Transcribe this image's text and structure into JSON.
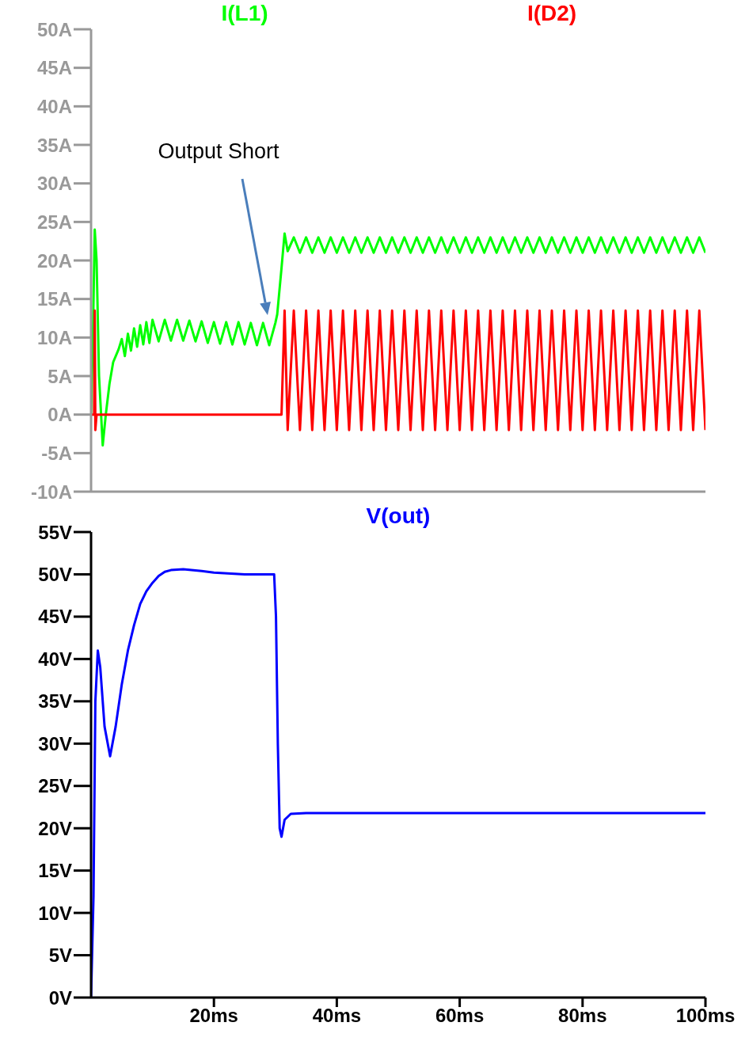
{
  "chart_data": [
    {
      "type": "line",
      "legend": "top",
      "marker": "none",
      "tick_labels": "y",
      "xlim": [
        0,
        100
      ],
      "ylim": [
        -10,
        50
      ],
      "yticks": [
        {
          "value": -10,
          "label": "-10A"
        },
        {
          "value": -5,
          "label": "-5A"
        },
        {
          "value": 0,
          "label": "0A"
        },
        {
          "value": 5,
          "label": "5A"
        },
        {
          "value": 10,
          "label": "10A"
        },
        {
          "value": 15,
          "label": "15A"
        },
        {
          "value": 20,
          "label": "20A"
        },
        {
          "value": 25,
          "label": "25A"
        },
        {
          "value": 30,
          "label": "30A"
        },
        {
          "value": 35,
          "label": "35A"
        },
        {
          "value": 40,
          "label": "40A"
        },
        {
          "value": 45,
          "label": "45A"
        },
        {
          "value": 50,
          "label": "50A"
        }
      ],
      "annotations": [
        "Output Short"
      ],
      "series": [
        {
          "name": "I(L1)",
          "color": "#00ff00",
          "x": [
            0,
            0.3,
            0.6,
            0.9,
            1.3,
            1.9,
            2.4,
            3.0,
            3.6,
            4.5,
            5,
            5.5,
            6,
            6.5,
            7,
            7.5,
            8,
            8.5,
            9,
            9.5,
            10,
            11,
            12,
            13,
            14,
            15,
            16,
            17,
            18,
            19,
            20,
            21,
            22,
            23,
            24,
            25,
            26,
            27,
            28,
            29,
            30,
            30.3,
            31,
            31.5,
            32,
            33,
            34,
            35,
            36,
            37,
            38,
            39,
            40,
            41,
            42,
            43,
            44,
            45,
            46,
            47,
            48,
            49,
            50,
            51,
            52,
            53,
            54,
            55,
            56,
            57,
            58,
            59,
            60,
            61,
            62,
            63,
            64,
            65,
            66,
            67,
            68,
            69,
            70,
            71,
            72,
            73,
            74,
            75,
            76,
            77,
            78,
            79,
            80,
            81,
            82,
            83,
            84,
            85,
            86,
            87,
            88,
            89,
            90,
            91,
            92,
            93,
            94,
            95,
            96,
            97,
            98,
            99,
            100
          ],
          "values": [
            0,
            10,
            24,
            20,
            5,
            -4,
            0,
            4,
            6.8,
            8.5,
            9.8,
            7.6,
            10.5,
            8.3,
            11.2,
            8.8,
            11.6,
            9.1,
            12,
            9.3,
            12.3,
            9.5,
            12.3,
            9.6,
            12.3,
            9.6,
            12.2,
            9.5,
            12.1,
            9.3,
            12,
            9.2,
            12,
            9.1,
            12,
            9.1,
            11.9,
            9,
            11.9,
            9,
            11.9,
            13,
            19,
            23.5,
            21.2,
            23,
            21,
            23,
            21,
            23,
            21,
            23,
            21,
            23,
            21,
            23,
            21,
            23,
            21,
            23,
            21,
            23,
            21,
            23,
            21,
            23,
            21,
            23,
            21,
            23,
            21,
            23,
            21,
            23,
            21,
            23,
            21,
            23,
            21,
            23,
            21,
            23,
            21,
            23,
            21,
            23,
            21,
            23,
            21,
            23,
            21,
            23,
            21,
            23,
            21,
            23,
            21,
            23,
            21,
            23,
            21,
            23,
            21,
            23,
            21,
            23,
            21,
            23,
            21,
            23,
            21,
            23,
            21
          ]
        },
        {
          "name": "I(D2)",
          "color": "#ff0000",
          "x": [
            0,
            0.5,
            0.6,
            0.7,
            0.9,
            31,
            31.5,
            32,
            33,
            34,
            35,
            36,
            37,
            38,
            39,
            40,
            41,
            42,
            43,
            44,
            45,
            46,
            47,
            48,
            49,
            50,
            51,
            52,
            53,
            54,
            55,
            56,
            57,
            58,
            59,
            60,
            61,
            62,
            63,
            64,
            65,
            66,
            67,
            68,
            69,
            70,
            71,
            72,
            73,
            74,
            75,
            76,
            77,
            78,
            79,
            80,
            81,
            82,
            83,
            84,
            85,
            86,
            87,
            88,
            89,
            90,
            91,
            92,
            93,
            94,
            95,
            96,
            97,
            98,
            99,
            100
          ],
          "values": [
            0,
            0,
            13.5,
            -2,
            0,
            0,
            13.5,
            -2,
            13.5,
            -2,
            13.5,
            -2,
            13.5,
            -2,
            13.5,
            -2,
            13.5,
            -2,
            13.5,
            -2,
            13.5,
            -2,
            13.5,
            -2,
            13.5,
            -2,
            13.5,
            -2,
            13.5,
            -2,
            13.5,
            -2,
            13.5,
            -2,
            13.5,
            -2,
            13.5,
            -2,
            13.5,
            -2,
            13.5,
            -2,
            13.5,
            -2,
            13.5,
            -2,
            13.5,
            -2,
            13.5,
            -2,
            13.5,
            -2,
            13.5,
            -2,
            13.5,
            -2,
            13.5,
            -2,
            13.5,
            -2,
            13.5,
            -2,
            13.5,
            -2,
            13.5,
            -2,
            13.5,
            -2,
            13.5,
            -2,
            13.5,
            -2,
            13.5,
            -2,
            13.5,
            -2
          ]
        }
      ]
    },
    {
      "type": "line",
      "legend": "top",
      "marker": "none",
      "xlim": [
        0,
        100
      ],
      "xticks": [
        {
          "value": 20,
          "label": "20ms"
        },
        {
          "value": 40,
          "label": "40ms"
        },
        {
          "value": 60,
          "label": "60ms"
        },
        {
          "value": 80,
          "label": "80ms"
        },
        {
          "value": 100,
          "label": "100ms"
        }
      ],
      "ylim": [
        0,
        55
      ],
      "yticks": [
        {
          "value": 0,
          "label": "0V"
        },
        {
          "value": 5,
          "label": "5V"
        },
        {
          "value": 10,
          "label": "10V"
        },
        {
          "value": 15,
          "label": "15V"
        },
        {
          "value": 20,
          "label": "20V"
        },
        {
          "value": 25,
          "label": "25V"
        },
        {
          "value": 30,
          "label": "30V"
        },
        {
          "value": 35,
          "label": "35V"
        },
        {
          "value": 40,
          "label": "40V"
        },
        {
          "value": 45,
          "label": "45V"
        },
        {
          "value": 50,
          "label": "50V"
        },
        {
          "value": 55,
          "label": "55V"
        }
      ],
      "series": [
        {
          "name": "V(out)",
          "color": "#0000ff",
          "x": [
            0,
            0.4,
            0.7,
            1.1,
            1.5,
            2.2,
            3.1,
            4,
            5,
            6,
            7,
            8,
            9,
            10,
            11,
            12,
            13,
            15,
            18,
            20,
            25,
            29.8,
            30.1,
            30.4,
            30.7,
            31,
            31.5,
            32.5,
            35,
            45,
            55,
            65,
            75,
            85,
            95,
            100
          ],
          "values": [
            0,
            12,
            35,
            41,
            39,
            32,
            28.5,
            32,
            37,
            41,
            44,
            46.5,
            48,
            49,
            49.8,
            50.3,
            50.5,
            50.6,
            50.4,
            50.2,
            50,
            50,
            45,
            30,
            20,
            19,
            21,
            21.7,
            21.8,
            21.8,
            21.8,
            21.8,
            21.8,
            21.8,
            21.8,
            21.8
          ]
        }
      ]
    }
  ]
}
